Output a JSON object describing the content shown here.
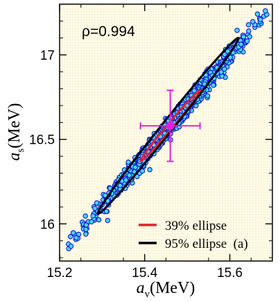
{
  "chart_data": {
    "type": "scatter",
    "title": "",
    "xlabel": {
      "main": "a",
      "sub": "v",
      "unit": "(MeV)"
    },
    "ylabel": {
      "main": "a",
      "sub": "s",
      "unit": "(MeV)"
    },
    "xlim": [
      15.2,
      15.7
    ],
    "ylim": [
      15.78,
      17.3
    ],
    "xticks": [
      15.2,
      15.4,
      15.6
    ],
    "yticks": [
      16,
      16.5,
      17
    ],
    "xtick_labels": [
      "15.2",
      "15.4",
      "15.6"
    ],
    "ytick_labels": [
      "16",
      "16.5",
      "17"
    ],
    "grid": false,
    "annotation": "ρ=0.994",
    "panel_label": "(a)",
    "background_color": "#fffbe0",
    "scatter": {
      "point_fill": "#48d8f0",
      "point_stroke": "#1515d8",
      "count": 900,
      "mean": [
        15.46,
        16.58
      ],
      "sd_x": 0.095,
      "sd_y": 0.28,
      "x_range": [
        15.22,
        15.69
      ],
      "y_range": [
        15.82,
        17.28
      ]
    },
    "center": {
      "x": 15.46,
      "y": 16.58,
      "xerr": 0.07,
      "yerr": 0.21,
      "color": "#e020e0"
    },
    "ellipses": [
      {
        "name": "39% ellipse",
        "color": "#e8202a",
        "x_range": [
          15.39,
          15.53
        ],
        "y_range": [
          16.37,
          16.79
        ]
      },
      {
        "name": "95% ellipse",
        "color": "#000000",
        "x_range": [
          15.29,
          15.62
        ],
        "y_range": [
          16.06,
          17.1
        ]
      }
    ],
    "legend": {
      "position": "bottom-right",
      "entries": [
        {
          "label": "39% ellipse",
          "color": "#e8202a"
        },
        {
          "label": "95% ellipse  (a)",
          "color": "#000000"
        }
      ]
    }
  }
}
